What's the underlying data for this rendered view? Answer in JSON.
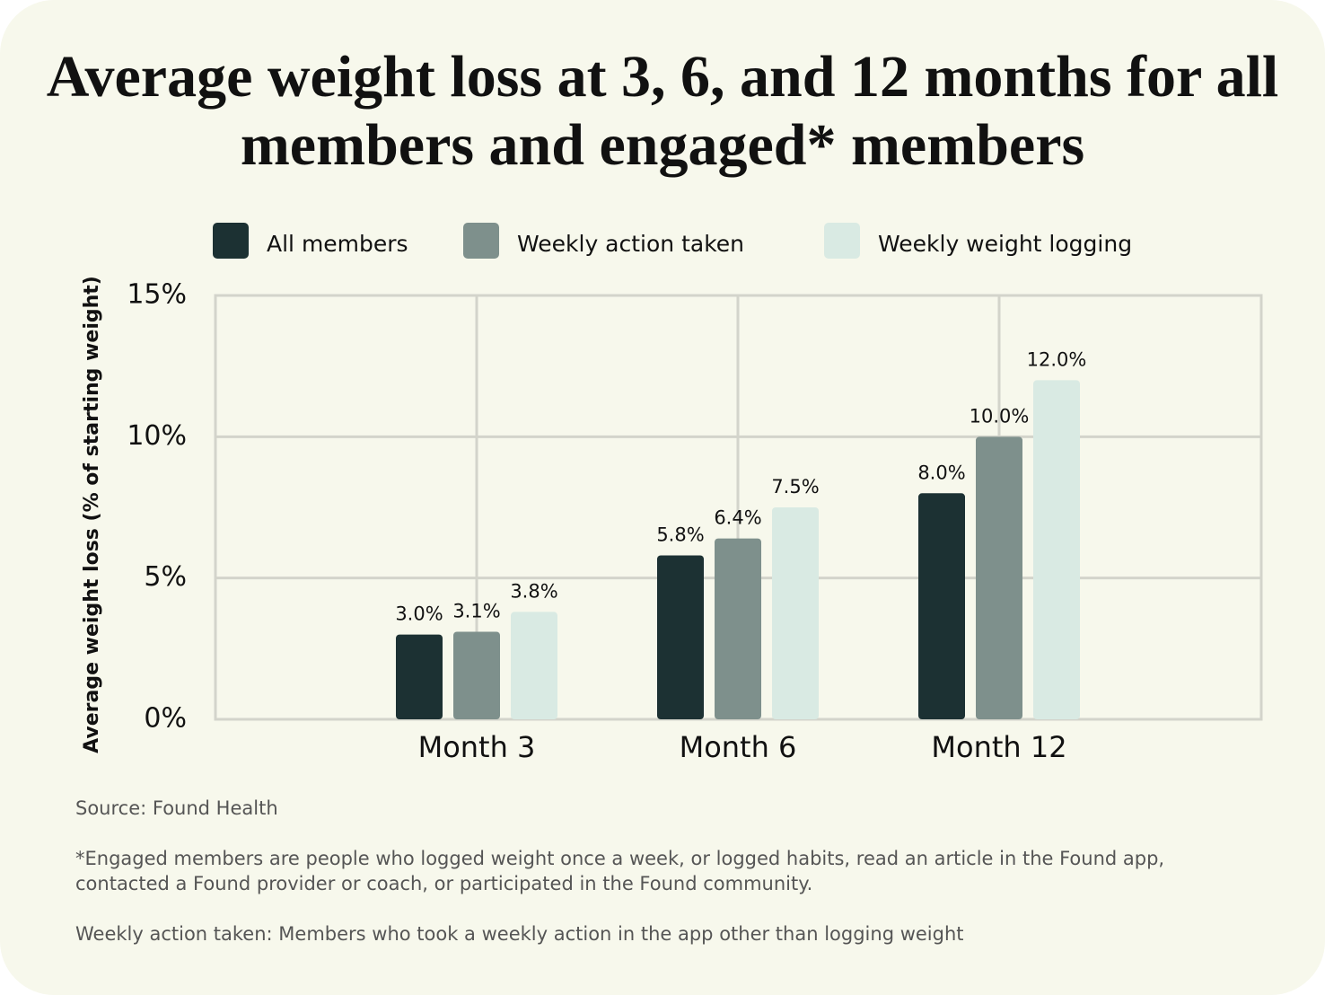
{
  "chart_data": {
    "type": "bar",
    "title": "Average weight loss at 3, 6, and 12 months for all members and engaged* members",
    "y_label": "Average weight loss (% of starting weight)",
    "categories": [
      "Month 3",
      "Month 6",
      "Month 12"
    ],
    "series": [
      {
        "name": "All members",
        "color": "#1c3133",
        "values": [
          3.0,
          5.8,
          8.0
        ],
        "value_labels": [
          "3.0%",
          "5.8%",
          "8.0%"
        ]
      },
      {
        "name": "Weekly action taken",
        "color": "#7e908c",
        "values": [
          3.1,
          6.4,
          10.0
        ],
        "value_labels": [
          "3.1%",
          "6.4%",
          "10.0%"
        ]
      },
      {
        "name": "Weekly weight logging",
        "color": "#d9eae3",
        "values": [
          3.8,
          7.5,
          12.0
        ],
        "value_labels": [
          "3.8%",
          "7.5%",
          "12.0%"
        ]
      }
    ],
    "ylim": [
      0,
      15
    ],
    "yticks": [
      {
        "value": 0,
        "label": "0%"
      },
      {
        "value": 5,
        "label": "5%"
      },
      {
        "value": 10,
        "label": "10%"
      },
      {
        "value": 15,
        "label": "15%"
      }
    ],
    "grid": true,
    "legend": "top",
    "source": "Source: Found Health",
    "notes": [
      "*Engaged members are people who logged weight once a week, or logged habits, read an article in the Found app, contacted a Found provider or coach, or participated in the Found community.",
      "Weekly action taken: Members who took a weekly action in the app other than logging weight"
    ]
  }
}
